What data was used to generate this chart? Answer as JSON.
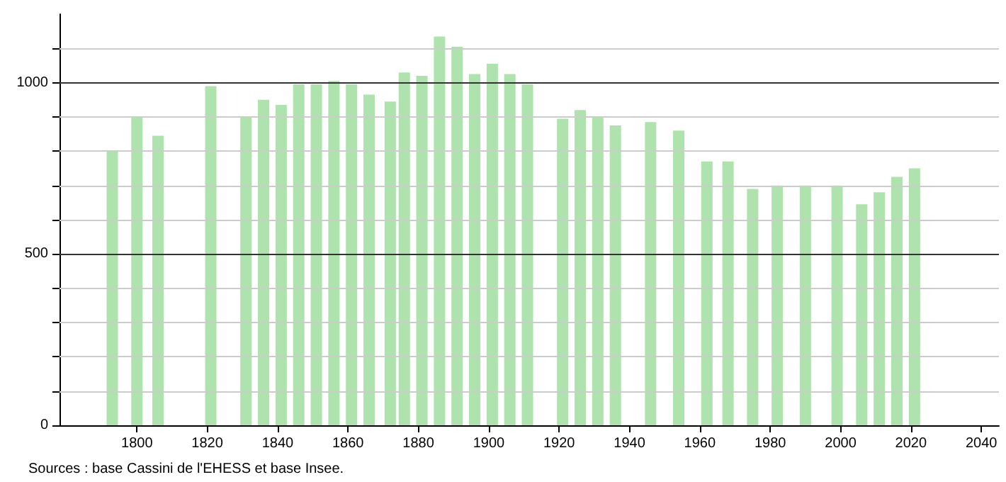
{
  "chart_data": {
    "type": "bar",
    "x": [
      1793,
      1800,
      1806,
      1821,
      1831,
      1836,
      1841,
      1846,
      1851,
      1856,
      1861,
      1866,
      1872,
      1876,
      1881,
      1886,
      1891,
      1896,
      1901,
      1906,
      1911,
      1921,
      1926,
      1931,
      1936,
      1946,
      1954,
      1962,
      1968,
      1975,
      1982,
      1990,
      1999,
      2006,
      2011,
      2016,
      2021
    ],
    "values": [
      800,
      900,
      845,
      990,
      900,
      950,
      935,
      995,
      995,
      1005,
      995,
      965,
      945,
      1030,
      1020,
      1135,
      1105,
      1025,
      1055,
      1025,
      995,
      895,
      920,
      900,
      875,
      885,
      860,
      770,
      770,
      690,
      700,
      700,
      700,
      645,
      680,
      725,
      750
    ],
    "color": "#aee3ae",
    "xlim": [
      1778,
      2045
    ],
    "xticks": [
      1800,
      1820,
      1840,
      1860,
      1880,
      1900,
      1920,
      1940,
      1960,
      1980,
      2000,
      2020,
      2040
    ],
    "ylim": [
      0,
      1200
    ],
    "yticks": [
      0,
      {
        "value": 100,
        "label": null
      },
      {
        "value": 200,
        "label": null
      },
      {
        "value": 300,
        "label": null
      },
      {
        "value": 400,
        "label": null
      },
      500,
      {
        "value": 600,
        "label": null
      },
      {
        "value": 700,
        "label": null
      },
      {
        "value": 800,
        "label": null
      },
      {
        "value": 900,
        "label": null
      },
      1000,
      {
        "value": 1100,
        "label": null
      }
    ],
    "grid": "y",
    "annotations": [
      "Sources : base Cassini de l'EHESS et base Insee."
    ]
  }
}
